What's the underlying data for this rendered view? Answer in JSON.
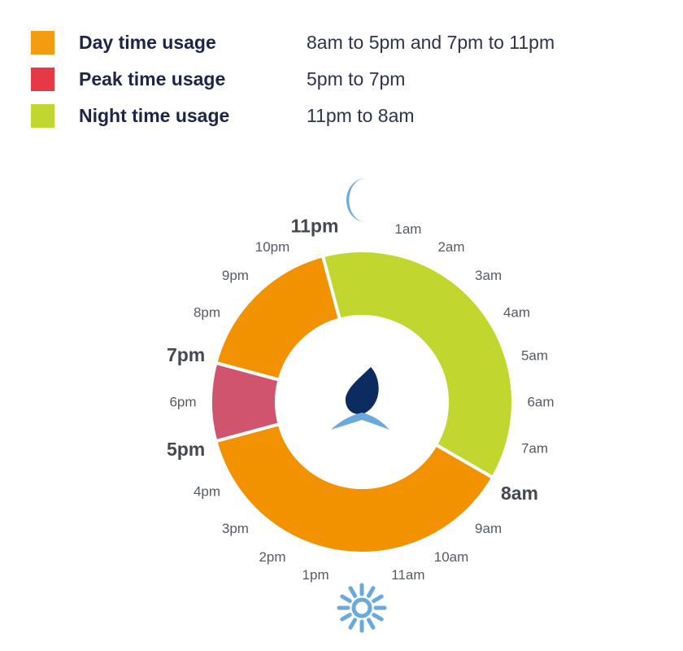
{
  "chart_data": {
    "type": "pie",
    "variant": "donut",
    "clock_hours": 24,
    "legend": [
      {
        "name": "Day time usage",
        "range": "8am to 5pm and 7pm to 11pm",
        "color": "#f39c12"
      },
      {
        "name": "Peak time usage",
        "range": "5pm to 7pm",
        "color": "#e63946"
      },
      {
        "name": "Night time usage",
        "range": "11pm to 8am",
        "color": "#c1d72f"
      }
    ],
    "segments": [
      {
        "category": "Night time usage",
        "start_hour": 23,
        "end_hour": 8,
        "hours": 9,
        "color": "#c1d72f"
      },
      {
        "category": "Day time usage",
        "start_hour": 8,
        "end_hour": 17,
        "hours": 9,
        "color": "#f39200"
      },
      {
        "category": "Peak time usage",
        "start_hour": 17,
        "end_hour": 19,
        "hours": 2,
        "color": "#d1546f"
      },
      {
        "category": "Day time usage",
        "start_hour": 19,
        "end_hour": 23,
        "hours": 4,
        "color": "#f39200"
      }
    ],
    "hour_labels": [
      {
        "hour": 1,
        "label": "1am"
      },
      {
        "hour": 2,
        "label": "2am"
      },
      {
        "hour": 3,
        "label": "3am"
      },
      {
        "hour": 4,
        "label": "4am"
      },
      {
        "hour": 5,
        "label": "5am"
      },
      {
        "hour": 6,
        "label": "6am"
      },
      {
        "hour": 7,
        "label": "7am"
      },
      {
        "hour": 8,
        "label": "8am",
        "bold": true
      },
      {
        "hour": 9,
        "label": "9am"
      },
      {
        "hour": 10,
        "label": "10am"
      },
      {
        "hour": 11,
        "label": "11am"
      },
      {
        "hour": 13,
        "label": "1pm"
      },
      {
        "hour": 14,
        "label": "2pm"
      },
      {
        "hour": 15,
        "label": "3pm"
      },
      {
        "hour": 16,
        "label": "4pm"
      },
      {
        "hour": 17,
        "label": "5pm",
        "bold": true
      },
      {
        "hour": 18,
        "label": "6pm"
      },
      {
        "hour": 19,
        "label": "7pm",
        "bold": true
      },
      {
        "hour": 20,
        "label": "8pm"
      },
      {
        "hour": 21,
        "label": "9pm"
      },
      {
        "hour": 22,
        "label": "10pm"
      },
      {
        "hour": 23,
        "label": "11pm",
        "bold": true
      }
    ],
    "icons": {
      "top": "moon-icon",
      "bottom": "sun-icon",
      "center": "flame-logo-icon"
    },
    "icon_color": "#6aa9dc",
    "logo_color": "#0c2b5e"
  }
}
